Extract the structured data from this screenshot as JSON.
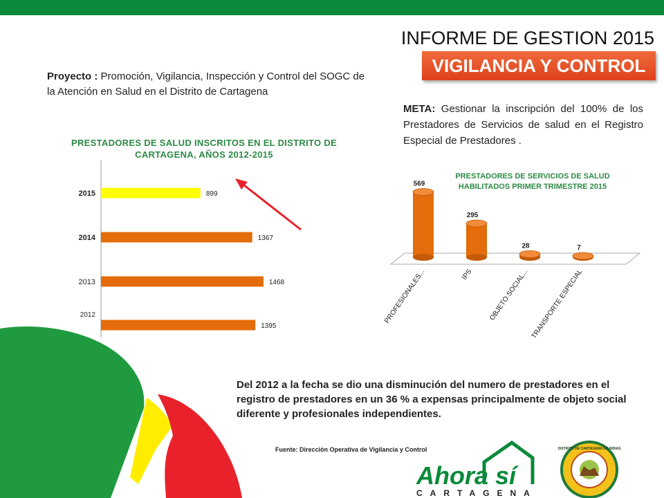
{
  "header": {
    "report_title": "INFORME DE GESTION 2015",
    "section_banner": "VIGILANCIA Y CONTROL"
  },
  "project": {
    "label": "Proyecto :",
    "text": "Promoción, Vigilancia, Inspección y Control del SOGC de la Atención en Salud  en el Distrito de Cartagena"
  },
  "goal": {
    "label": "META:",
    "text": "Gestionar la inscripción del 100% de los Prestadores de Servicios de salud en el Registro Especial de Prestadores ."
  },
  "conclusion": "Del 2012 a la fecha se dio una disminución del numero de prestadores en el registro de prestadores en un 36 % a expensas  principalmente de objeto social diferente y profesionales independientes.",
  "source": "Fuente: Dirección Operativa de Vigilancia y Control",
  "logo": {
    "wordmark": "Ahora sí",
    "city": "CARTAGENA",
    "seal_text": "DISTRITO DE CARTAGENA DE INDIAS"
  },
  "colors": {
    "green": "#0a8a3a",
    "orange": "#e46c0a",
    "yellow": "#ffff00",
    "red": "#e8212a",
    "title_green": "#2c8a44"
  },
  "chart_data": [
    {
      "type": "bar",
      "orientation": "horizontal",
      "title": "PRESTADORES DE SALUD INSCRITOS EN EL DISTRITO DE CARTAGENA, AÑOS  2012-2015",
      "categories": [
        "2015",
        "2014",
        "2013",
        "2012"
      ],
      "values": [
        899,
        1367,
        1468,
        1395
      ],
      "bar_colors": [
        "#ffff00",
        "#e46c0a",
        "#e46c0a",
        "#e46c0a"
      ],
      "xlim": [
        0,
        2000
      ],
      "grid": false
    },
    {
      "type": "bar",
      "style": "3d-cylinder",
      "title": "PRESTADORES DE SERVICIOS DE SALUD HABILITADOS PRIMER TRIMESTRE 2015",
      "categories": [
        "PROFESIONALES...",
        "IPS",
        "OBJETO SOCIAL...",
        "TRANSPORTE ESPECIAL"
      ],
      "values": [
        569,
        295,
        28,
        7
      ],
      "ylim": [
        0,
        600
      ],
      "grid": false
    }
  ]
}
